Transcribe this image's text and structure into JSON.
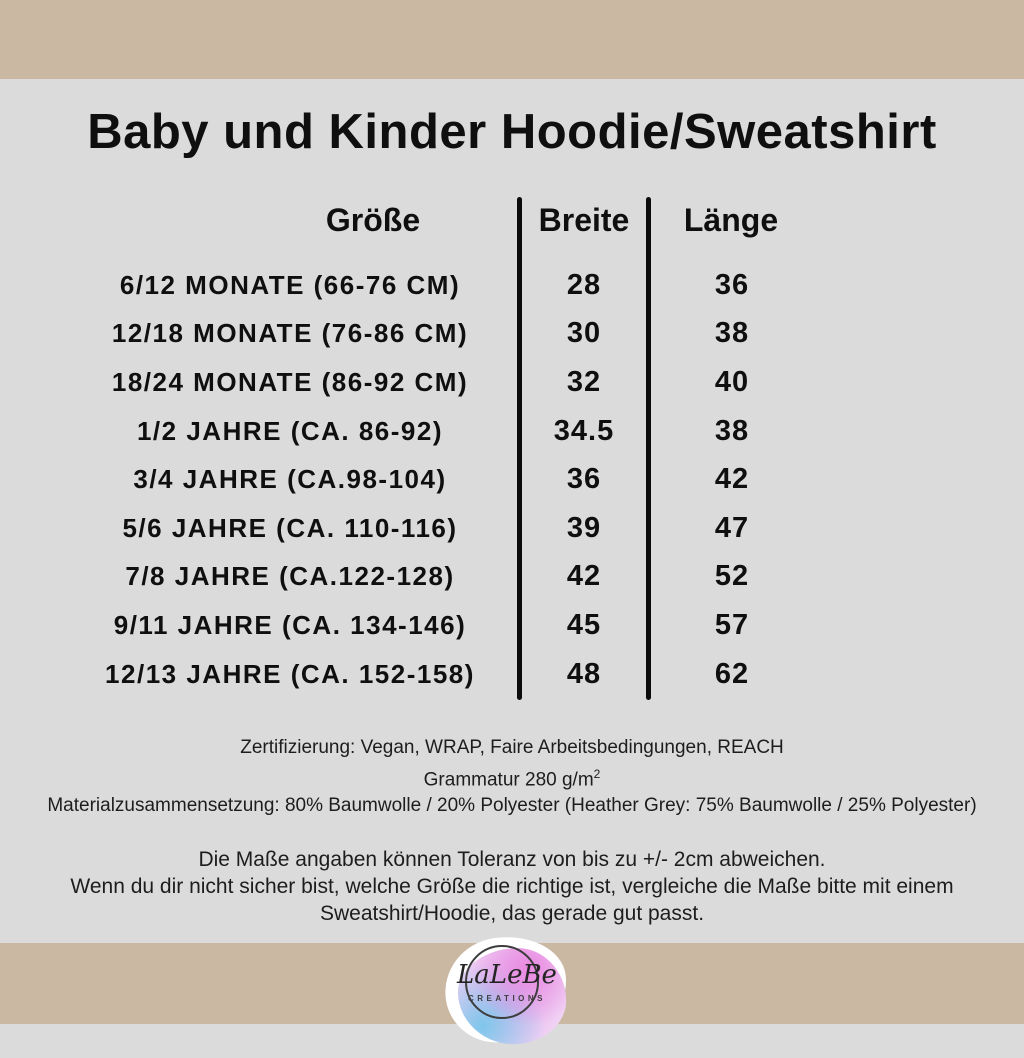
{
  "page": {
    "title": "Baby und Kinder Hoodie/Sweatshirt"
  },
  "table": {
    "headers": {
      "size": "Größe",
      "width": "Breite",
      "length": "Länge"
    },
    "rows": [
      {
        "size": "6/12 MONATE (66-76 CM)",
        "width": "28",
        "length": "36"
      },
      {
        "size": "12/18 MONATE (76-86 CM)",
        "width": "30",
        "length": "38"
      },
      {
        "size": "18/24 MONATE (86-92 CM)",
        "width": "32",
        "length": "40"
      },
      {
        "size": "1/2 JAHRE (CA. 86-92)",
        "width": "34.5",
        "length": "38"
      },
      {
        "size": "3/4 JAHRE (CA.98-104)",
        "width": "36",
        "length": "42"
      },
      {
        "size": "5/6 JAHRE (CA. 110-116)",
        "width": "39",
        "length": "47"
      },
      {
        "size": "7/8 JAHRE (CA.122-128)",
        "width": "42",
        "length": "52"
      },
      {
        "size": "9/11 JAHRE (CA. 134-146)",
        "width": "45",
        "length": "57"
      },
      {
        "size": "12/13 JAHRE (CA. 152-158)",
        "width": "48",
        "length": "62"
      }
    ]
  },
  "details": {
    "certification": "Zertifizierung: Vegan, WRAP, Faire Arbeitsbedingungen, REACH",
    "grammage_text": "Grammatur 280 g/m",
    "grammage_superscript": "2",
    "material": "Materialzusammensetzung: 80% Baumwolle / 20% Polyester (Heather Grey: 75% Baumwolle / 25% Polyester)"
  },
  "tolerance_note": {
    "line1": "Die Maße angaben können Toleranz von bis zu +/- 2cm abweichen.",
    "line2": "Wenn du dir nicht sicher bist, welche Größe die richtige ist, vergleiche die Maße bitte mit einem",
    "line3": "Sweatshirt/Hoodie, das gerade gut passt."
  },
  "logo": {
    "brand": "LaLeBe",
    "subtitle": "CREATIONS"
  },
  "colors": {
    "band": "#cbb8a3",
    "background": "#dbdbdb",
    "text": "#0f0f0f",
    "logo_pink": "#e985e0",
    "logo_blue": "#78c6eb",
    "logo_lavender": "#dfa8eb"
  }
}
